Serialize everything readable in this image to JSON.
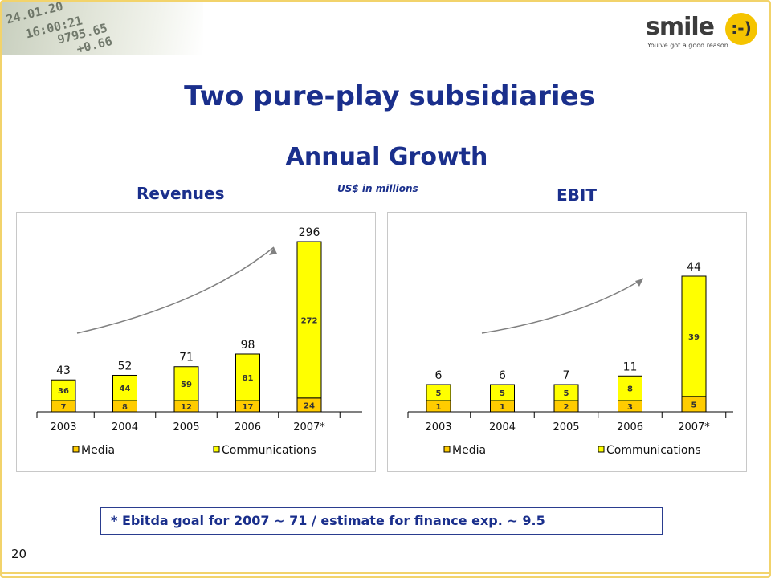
{
  "slide": {
    "title": "Two pure-play subsidiaries",
    "subtitle": "Annual Growth",
    "units": "US$ in millions",
    "revenues_label": "Revenues",
    "ebit_label": "EBIT",
    "footnote": "* Ebitda goal for 2007 ~ 71 / estimate for finance exp. ~ 9.5",
    "page_number": "20"
  },
  "logo": {
    "word": "smile",
    "face": ":-)",
    "tagline": "You've got a good reason"
  },
  "ticker": [
    "24.01.20",
    "16:00:21",
    "9795.65",
    "+0.66"
  ],
  "colors": {
    "title": "#1a2f8c",
    "bar_fill": "#ffff00",
    "bar_fill_media": "#ffcc00",
    "bar_stroke": "#000000",
    "frame": "#f2d36b",
    "arrow": "#808080"
  },
  "chart_data": [
    {
      "type": "bar",
      "stacked": true,
      "title": "Revenues",
      "categories": [
        "2003",
        "2004",
        "2005",
        "2006",
        "2007*"
      ],
      "series": [
        {
          "name": "Media",
          "values": [
            7,
            8,
            12,
            17,
            24
          ]
        },
        {
          "name": "Communications",
          "values": [
            36,
            44,
            59,
            81,
            272
          ]
        }
      ],
      "totals": [
        43,
        52,
        71,
        98,
        296
      ],
      "ylim": [
        0,
        296
      ],
      "grid": false,
      "legend": "bottom",
      "annotation": "upward curved growth arrow"
    },
    {
      "type": "bar",
      "stacked": true,
      "title": "EBIT",
      "categories": [
        "2003",
        "2004",
        "2005",
        "2006",
        "2007*"
      ],
      "series": [
        {
          "name": "Media",
          "values": [
            1,
            1,
            2,
            3,
            5
          ]
        },
        {
          "name": "Communications",
          "values": [
            5,
            5,
            5,
            8,
            39
          ]
        }
      ],
      "totals": [
        6,
        6,
        7,
        11,
        44
      ],
      "ylim": [
        0,
        44
      ],
      "grid": false,
      "legend": "bottom",
      "annotation": "upward curved growth arrow"
    }
  ]
}
